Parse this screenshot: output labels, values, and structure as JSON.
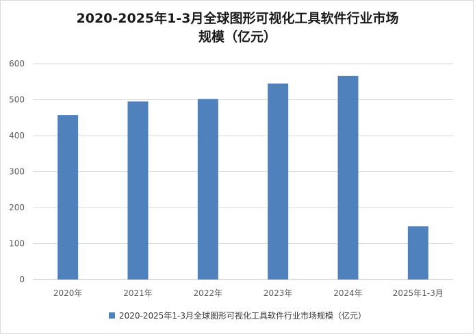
{
  "chart_data": {
    "type": "bar",
    "title_line1": "2020-2025年1-3月全球图形可视化工具软件行业市场",
    "title_line2": "规模（亿元）",
    "categories": [
      "2020年",
      "2021年",
      "2022年",
      "2023年",
      "2024年",
      "2025年1-3月"
    ],
    "series": [
      {
        "name": "2020-2025年1-3月全球图形可视化工具软件行业市场规模（亿元）",
        "values": [
          457,
          495,
          502,
          545,
          566,
          148
        ],
        "color": "#4f81bd"
      }
    ],
    "ylim": [
      0,
      600
    ],
    "yticks": [
      "0",
      "100",
      "200",
      "300",
      "400",
      "500",
      "600"
    ],
    "grid": true,
    "legend_position": "bottom"
  }
}
